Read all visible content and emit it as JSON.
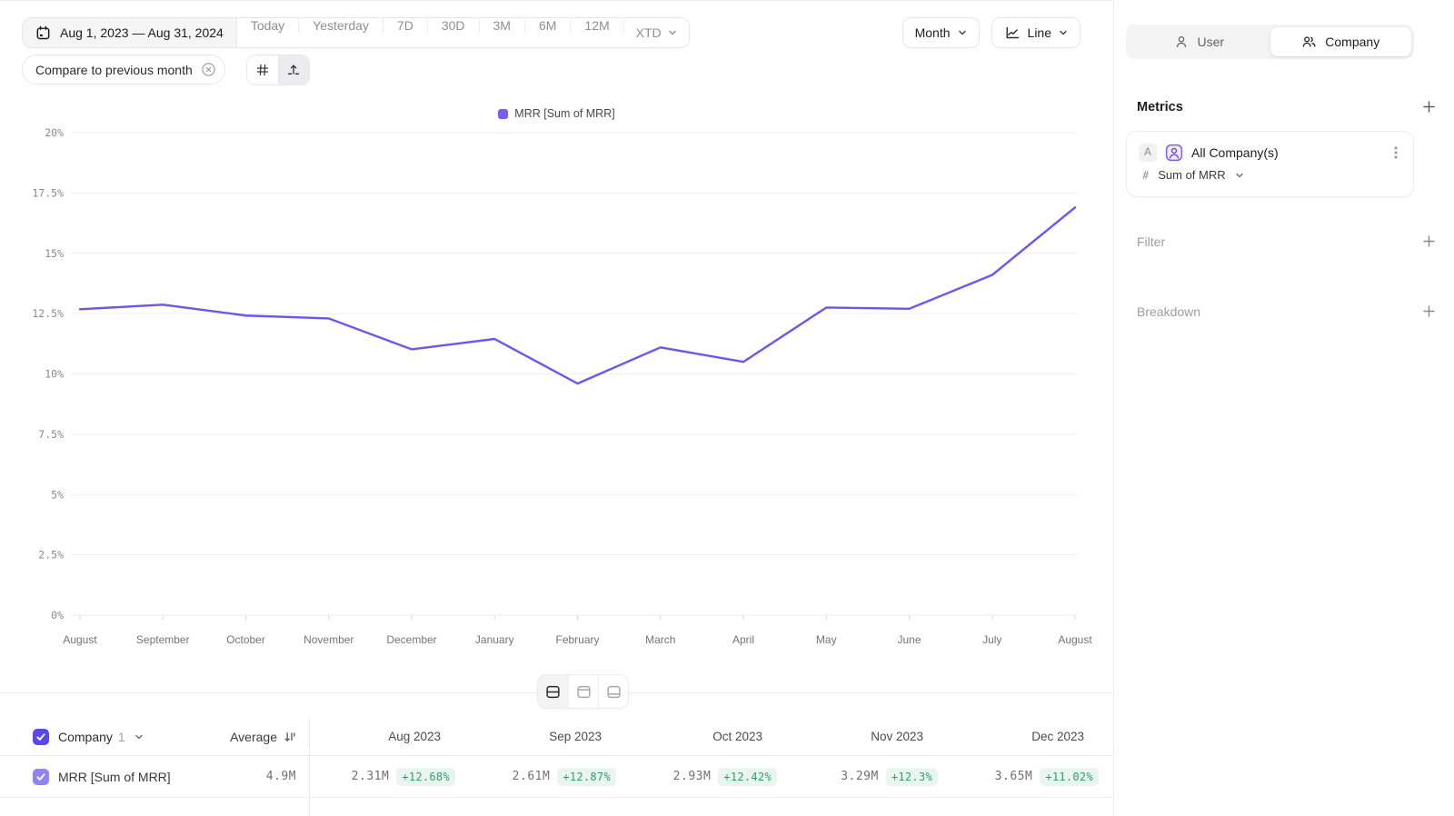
{
  "toolbar": {
    "date_range": "Aug 1, 2023 — Aug 31, 2024",
    "presets": [
      "Today",
      "Yesterday",
      "7D",
      "30D",
      "3M",
      "6M",
      "12M"
    ],
    "xtd_label": "XTD",
    "compare_chip": "Compare to previous month",
    "granularity": "Month",
    "chart_type": "Line"
  },
  "sidebar": {
    "tabs": {
      "user": "User",
      "company": "Company"
    },
    "metrics_heading": "Metrics",
    "metric": {
      "badge": "A",
      "name": "All Company(s)",
      "hash": "#",
      "aggregation": "Sum of MRR"
    },
    "filter": "Filter",
    "breakdown": "Breakdown"
  },
  "chart_data": {
    "type": "line",
    "legend": [
      "MRR [Sum of MRR]"
    ],
    "x": [
      "August",
      "September",
      "October",
      "November",
      "December",
      "January",
      "February",
      "March",
      "April",
      "May",
      "June",
      "July",
      "August"
    ],
    "series": [
      {
        "name": "MRR [Sum of MRR]",
        "values": [
          12.68,
          12.87,
          12.42,
          12.3,
          11.02,
          11.45,
          9.6,
          11.1,
          10.5,
          12.75,
          12.7,
          14.1,
          16.9
        ]
      }
    ],
    "ylim": [
      0,
      20
    ],
    "yticks": [
      "0%",
      "2.5%",
      "5%",
      "7.5%",
      "10%",
      "12.5%",
      "15%",
      "17.5%",
      "20%"
    ],
    "grid": true,
    "legend_position": "top-center"
  },
  "table": {
    "header": {
      "entity": "Company",
      "count": "1",
      "average": "Average"
    },
    "months": [
      "Aug 2023",
      "Sep 2023",
      "Oct 2023",
      "Nov 2023",
      "Dec 2023"
    ],
    "rows": [
      {
        "label": "MRR [Sum of MRR]",
        "average": "4.9M",
        "cells": [
          {
            "value": "2.31M",
            "delta": "+12.68%"
          },
          {
            "value": "2.61M",
            "delta": "+12.87%"
          },
          {
            "value": "2.93M",
            "delta": "+12.42%"
          },
          {
            "value": "3.29M",
            "delta": "+12.3%"
          },
          {
            "value": "3.65M",
            "delta": "+11.02%"
          }
        ]
      }
    ]
  },
  "colors": {
    "accent_line": "#6e54f2",
    "legend_swatch": "#7a5cf5",
    "checkbox_dark": "#5948ec",
    "checkbox_light": "#9183f4",
    "positive_text": "#2f9e6e",
    "positive_bg": "#e9f6ef",
    "grid_line": "#ededee",
    "axis_text": "#8a8a8e"
  }
}
